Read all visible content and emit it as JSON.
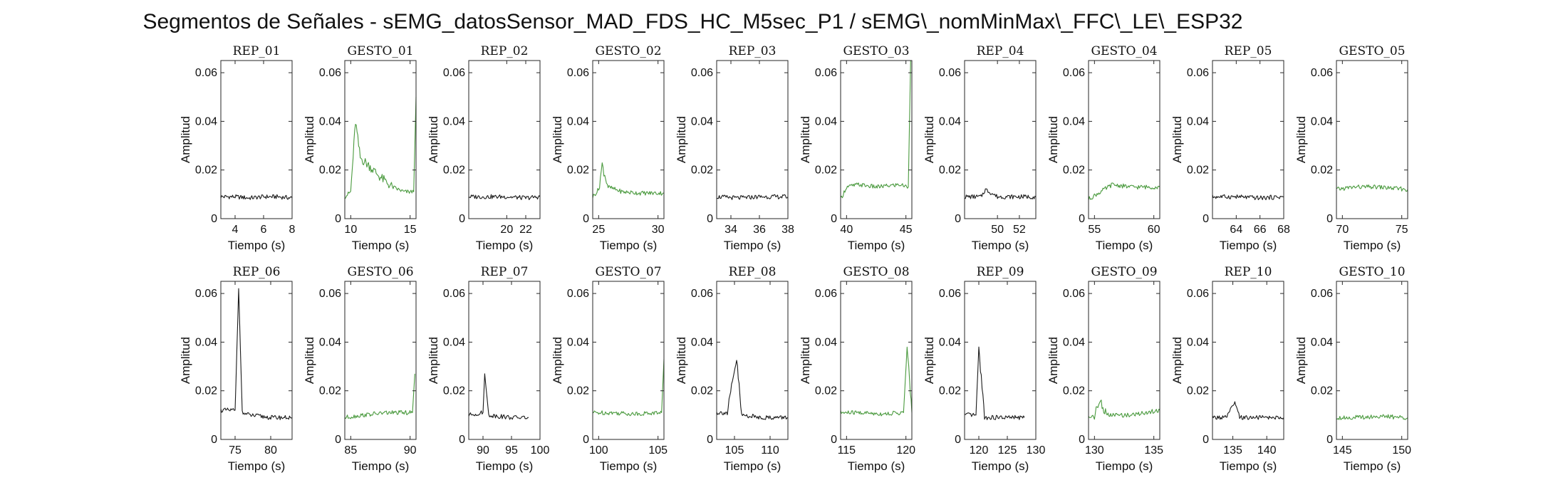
{
  "title": "Segmentos de Señales - sEMG_datosSensor_MAD_FDS_HC_M5sec_P1 / sEMG\\_nomMinMax\\_FFC\\_LE\\_ESP32",
  "colors": {
    "rep": "#1a1a1a",
    "gesto": "#4a9a3e",
    "axis": "#262626"
  },
  "chart_data": [
    {
      "type": "line",
      "title": "REP_01",
      "xlabel": "Tiempo (s)",
      "ylabel": "Amplitud",
      "xlim": [
        3,
        8
      ],
      "ylim": [
        0,
        0.065
      ],
      "xticks": [
        4,
        6,
        8
      ],
      "yticks": [
        0,
        0.02,
        0.04,
        0.06
      ],
      "series": [
        {
          "values": [
            [
              3,
              0.009
            ],
            [
              4,
              0.009
            ],
            [
              5,
              0.0085
            ],
            [
              6,
              0.009
            ],
            [
              7,
              0.009
            ],
            [
              8,
              0.0085
            ]
          ]
        }
      ]
    },
    {
      "type": "line",
      "title": "GESTO_01",
      "xlabel": "Tiempo (s)",
      "ylabel": "Amplitud",
      "xlim": [
        9.5,
        15.5
      ],
      "ylim": [
        0,
        0.065
      ],
      "xticks": [
        10,
        15
      ],
      "yticks": [
        0,
        0.02,
        0.04,
        0.06
      ],
      "series": [
        {
          "values": [
            [
              9.5,
              0.009
            ],
            [
              10,
              0.011
            ],
            [
              10.4,
              0.04
            ],
            [
              10.8,
              0.025
            ],
            [
              11.5,
              0.022
            ],
            [
              12.5,
              0.017
            ],
            [
              13.5,
              0.013
            ],
            [
              14.5,
              0.011
            ],
            [
              15.3,
              0.011
            ],
            [
              15.5,
              0.05
            ]
          ]
        }
      ]
    },
    {
      "type": "line",
      "title": "REP_02",
      "xlabel": "Tiempo (s)",
      "ylabel": "Amplitud",
      "xlim": [
        16,
        23.5
      ],
      "ylim": [
        0,
        0.065
      ],
      "xticks": [
        20,
        22
      ],
      "yticks": [
        0,
        0.02,
        0.04,
        0.06
      ],
      "series": [
        {
          "values": [
            [
              16,
              0.009
            ],
            [
              18,
              0.009
            ],
            [
              20,
              0.009
            ],
            [
              22,
              0.0085
            ],
            [
              23.5,
              0.009
            ]
          ]
        }
      ]
    },
    {
      "type": "line",
      "title": "GESTO_02",
      "xlabel": "Tiempo (s)",
      "ylabel": "Amplitud",
      "xlim": [
        24.5,
        30.5
      ],
      "ylim": [
        0,
        0.065
      ],
      "xticks": [
        25,
        30
      ],
      "yticks": [
        0,
        0.02,
        0.04,
        0.06
      ],
      "series": [
        {
          "values": [
            [
              24.5,
              0.009
            ],
            [
              25,
              0.012
            ],
            [
              25.3,
              0.022
            ],
            [
              25.8,
              0.013
            ],
            [
              27,
              0.011
            ],
            [
              28.5,
              0.0105
            ],
            [
              30.5,
              0.0105
            ]
          ]
        }
      ]
    },
    {
      "type": "line",
      "title": "REP_03",
      "xlabel": "Tiempo (s)",
      "ylabel": "Amplitud",
      "xlim": [
        33,
        38
      ],
      "ylim": [
        0,
        0.065
      ],
      "xticks": [
        34,
        36,
        38
      ],
      "yticks": [
        0,
        0.02,
        0.04,
        0.06
      ],
      "series": [
        {
          "values": [
            [
              33,
              0.009
            ],
            [
              34.5,
              0.0085
            ],
            [
              36,
              0.009
            ],
            [
              38,
              0.009
            ]
          ]
        }
      ]
    },
    {
      "type": "line",
      "title": "GESTO_03",
      "xlabel": "Tiempo (s)",
      "ylabel": "Amplitud",
      "xlim": [
        39.5,
        45.5
      ],
      "ylim": [
        0,
        0.065
      ],
      "xticks": [
        40,
        45
      ],
      "yticks": [
        0,
        0.02,
        0.04,
        0.06
      ],
      "series": [
        {
          "values": [
            [
              39.5,
              0.008
            ],
            [
              40,
              0.013
            ],
            [
              41,
              0.014
            ],
            [
              42.5,
              0.013
            ],
            [
              44.5,
              0.014
            ],
            [
              45.2,
              0.013
            ],
            [
              45.4,
              0.065
            ]
          ]
        }
      ]
    },
    {
      "type": "line",
      "title": "REP_04",
      "xlabel": "Tiempo (s)",
      "ylabel": "Amplitud",
      "xlim": [
        47,
        53.5
      ],
      "ylim": [
        0,
        0.065
      ],
      "xticks": [
        50,
        52
      ],
      "yticks": [
        0,
        0.02,
        0.04,
        0.06
      ],
      "series": [
        {
          "values": [
            [
              47,
              0.009
            ],
            [
              48.5,
              0.009
            ],
            [
              48.9,
              0.012
            ],
            [
              50,
              0.009
            ],
            [
              53.5,
              0.009
            ]
          ]
        }
      ]
    },
    {
      "type": "line",
      "title": "GESTO_04",
      "xlabel": "Tiempo (s)",
      "ylabel": "Amplitud",
      "xlim": [
        54.5,
        60.5
      ],
      "ylim": [
        0,
        0.065
      ],
      "xticks": [
        55,
        60
      ],
      "yticks": [
        0,
        0.02,
        0.04,
        0.06
      ],
      "series": [
        {
          "values": [
            [
              54.5,
              0.008
            ],
            [
              55.5,
              0.011
            ],
            [
              56.5,
              0.014
            ],
            [
              58,
              0.013
            ],
            [
              60.5,
              0.013
            ]
          ]
        }
      ]
    },
    {
      "type": "line",
      "title": "REP_05",
      "xlabel": "Tiempo (s)",
      "ylabel": "Amplitud",
      "xlim": [
        62,
        68
      ],
      "ylim": [
        0,
        0.065
      ],
      "xticks": [
        64,
        66,
        68
      ],
      "yticks": [
        0,
        0.02,
        0.04,
        0.06
      ],
      "series": [
        {
          "values": [
            [
              62,
              0.009
            ],
            [
              64,
              0.009
            ],
            [
              66,
              0.0085
            ],
            [
              68,
              0.009
            ]
          ]
        }
      ]
    },
    {
      "type": "line",
      "title": "GESTO_05",
      "xlabel": "Tiempo (s)",
      "ylabel": "Amplitud",
      "xlim": [
        69.5,
        75.5
      ],
      "ylim": [
        0,
        0.065
      ],
      "xticks": [
        70,
        75
      ],
      "yticks": [
        0,
        0.02,
        0.04,
        0.06
      ],
      "series": [
        {
          "values": [
            [
              69.5,
              0.012
            ],
            [
              71,
              0.013
            ],
            [
              73,
              0.013
            ],
            [
              75.5,
              0.012
            ]
          ]
        }
      ]
    },
    {
      "type": "line",
      "title": "REP_06",
      "xlabel": "Tiempo (s)",
      "ylabel": "Amplitud",
      "xlim": [
        73,
        83
      ],
      "ylim": [
        0,
        0.065
      ],
      "xticks": [
        75,
        80
      ],
      "yticks": [
        0,
        0.02,
        0.04,
        0.06
      ],
      "series": [
        {
          "values": [
            [
              73,
              0.012
            ],
            [
              75,
              0.012
            ],
            [
              75.5,
              0.062
            ],
            [
              76,
              0.011
            ],
            [
              77,
              0.01
            ],
            [
              80,
              0.009
            ],
            [
              83,
              0.009
            ]
          ]
        }
      ]
    },
    {
      "type": "line",
      "title": "GESTO_06",
      "xlabel": "Tiempo (s)",
      "ylabel": "Amplitud",
      "xlim": [
        84.5,
        90.5
      ],
      "ylim": [
        0,
        0.065
      ],
      "xticks": [
        85,
        90
      ],
      "yticks": [
        0,
        0.02,
        0.04,
        0.06
      ],
      "series": [
        {
          "values": [
            [
              84.5,
              0.009
            ],
            [
              86,
              0.01
            ],
            [
              88,
              0.011
            ],
            [
              90.2,
              0.011
            ],
            [
              90.4,
              0.027
            ]
          ]
        }
      ]
    },
    {
      "type": "line",
      "title": "REP_07",
      "xlabel": "Tiempo (s)",
      "ylabel": "Amplitud",
      "xlim": [
        87.5,
        100
      ],
      "ylim": [
        0,
        0.065
      ],
      "xticks": [
        90,
        95,
        100
      ],
      "yticks": [
        0,
        0.02,
        0.04,
        0.06
      ],
      "series": [
        {
          "values": [
            [
              87.5,
              0.01
            ],
            [
              90,
              0.011
            ],
            [
              90.3,
              0.027
            ],
            [
              91,
              0.01
            ],
            [
              95,
              0.009
            ],
            [
              98,
              0.009
            ]
          ]
        }
      ]
    },
    {
      "type": "line",
      "title": "GESTO_07",
      "xlabel": "Tiempo (s)",
      "ylabel": "Amplitud",
      "xlim": [
        99.5,
        105.5
      ],
      "ylim": [
        0,
        0.065
      ],
      "xticks": [
        100,
        105
      ],
      "yticks": [
        0,
        0.02,
        0.04,
        0.06
      ],
      "series": [
        {
          "values": [
            [
              99.5,
              0.011
            ],
            [
              101,
              0.011
            ],
            [
              103,
              0.0105
            ],
            [
              105.3,
              0.011
            ],
            [
              105.5,
              0.033
            ]
          ]
        }
      ]
    },
    {
      "type": "line",
      "title": "REP_08",
      "xlabel": "Tiempo (s)",
      "ylabel": "Amplitud",
      "xlim": [
        102.5,
        112.5
      ],
      "ylim": [
        0,
        0.065
      ],
      "xticks": [
        105,
        110
      ],
      "yticks": [
        0,
        0.02,
        0.04,
        0.06
      ],
      "series": [
        {
          "values": [
            [
              102.5,
              0.011
            ],
            [
              104,
              0.011
            ],
            [
              105.3,
              0.033
            ],
            [
              106,
              0.01
            ],
            [
              109,
              0.009
            ],
            [
              112.5,
              0.009
            ]
          ]
        }
      ]
    },
    {
      "type": "line",
      "title": "GESTO_08",
      "xlabel": "Tiempo (s)",
      "ylabel": "Amplitud",
      "xlim": [
        114.5,
        120.5
      ],
      "ylim": [
        0,
        0.065
      ],
      "xticks": [
        115,
        120
      ],
      "yticks": [
        0,
        0.02,
        0.04,
        0.06
      ],
      "series": [
        {
          "values": [
            [
              114.5,
              0.011
            ],
            [
              116,
              0.011
            ],
            [
              118,
              0.0105
            ],
            [
              119.8,
              0.011
            ],
            [
              120.1,
              0.038
            ],
            [
              120.5,
              0.011
            ]
          ]
        }
      ]
    },
    {
      "type": "line",
      "title": "REP_09",
      "xlabel": "Tiempo (s)",
      "ylabel": "Amplitud",
      "xlim": [
        117.5,
        130
      ],
      "ylim": [
        0,
        0.065
      ],
      "xticks": [
        120,
        125,
        130
      ],
      "yticks": [
        0,
        0.02,
        0.04,
        0.06
      ],
      "series": [
        {
          "values": [
            [
              117.5,
              0.01
            ],
            [
              119.5,
              0.01
            ],
            [
              120,
              0.038
            ],
            [
              121,
              0.009
            ],
            [
              125,
              0.009
            ],
            [
              128,
              0.009
            ]
          ]
        }
      ]
    },
    {
      "type": "line",
      "title": "GESTO_09",
      "xlabel": "Tiempo (s)",
      "ylabel": "Amplitud",
      "xlim": [
        129.5,
        135.5
      ],
      "ylim": [
        0,
        0.065
      ],
      "xticks": [
        130,
        135
      ],
      "yticks": [
        0,
        0.02,
        0.04,
        0.06
      ],
      "series": [
        {
          "values": [
            [
              129.5,
              0.009
            ],
            [
              130,
              0.01
            ],
            [
              130.5,
              0.016
            ],
            [
              131,
              0.01
            ],
            [
              133,
              0.01
            ],
            [
              135.5,
              0.012
            ]
          ]
        }
      ]
    },
    {
      "type": "line",
      "title": "REP_10",
      "xlabel": "Tiempo (s)",
      "ylabel": "Amplitud",
      "xlim": [
        132,
        142.5
      ],
      "ylim": [
        0,
        0.065
      ],
      "xticks": [
        135,
        140
      ],
      "yticks": [
        0,
        0.02,
        0.04,
        0.06
      ],
      "series": [
        {
          "values": [
            [
              132,
              0.009
            ],
            [
              134,
              0.009
            ],
            [
              135.3,
              0.015
            ],
            [
              136,
              0.009
            ],
            [
              140,
              0.009
            ],
            [
              142.5,
              0.009
            ]
          ]
        }
      ]
    },
    {
      "type": "line",
      "title": "GESTO_10",
      "xlabel": "Tiempo (s)",
      "ylabel": "Amplitud",
      "xlim": [
        144.5,
        150.5
      ],
      "ylim": [
        0,
        0.065
      ],
      "xticks": [
        145,
        150
      ],
      "yticks": [
        0,
        0.02,
        0.04,
        0.06
      ],
      "series": [
        {
          "values": [
            [
              144.5,
              0.009
            ],
            [
              146,
              0.009
            ],
            [
              148,
              0.0095
            ],
            [
              150.5,
              0.009
            ]
          ]
        }
      ]
    }
  ]
}
